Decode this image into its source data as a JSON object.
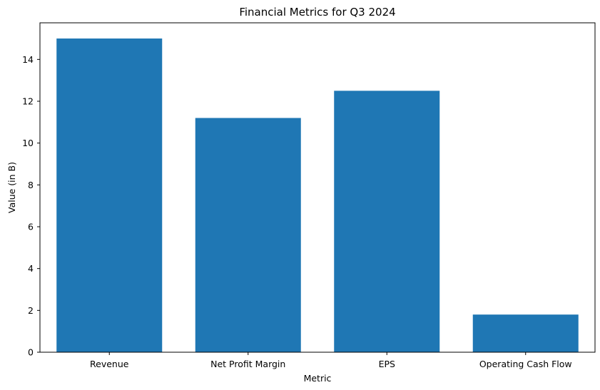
{
  "chart_data": {
    "type": "bar",
    "title": "Financial Metrics for Q3 2024",
    "xlabel": "Metric",
    "ylabel": "Value (in B)",
    "categories": [
      "Revenue",
      "Net Profit Margin",
      "EPS",
      "Operating Cash Flow"
    ],
    "values": [
      15.0,
      11.2,
      12.5,
      1.8
    ],
    "ylim": [
      0,
      15.75
    ],
    "yticks": [
      "0",
      "2",
      "4",
      "6",
      "8",
      "10",
      "12",
      "14"
    ],
    "bar_color": "#1f77b4",
    "grid": false,
    "legend": "none"
  }
}
